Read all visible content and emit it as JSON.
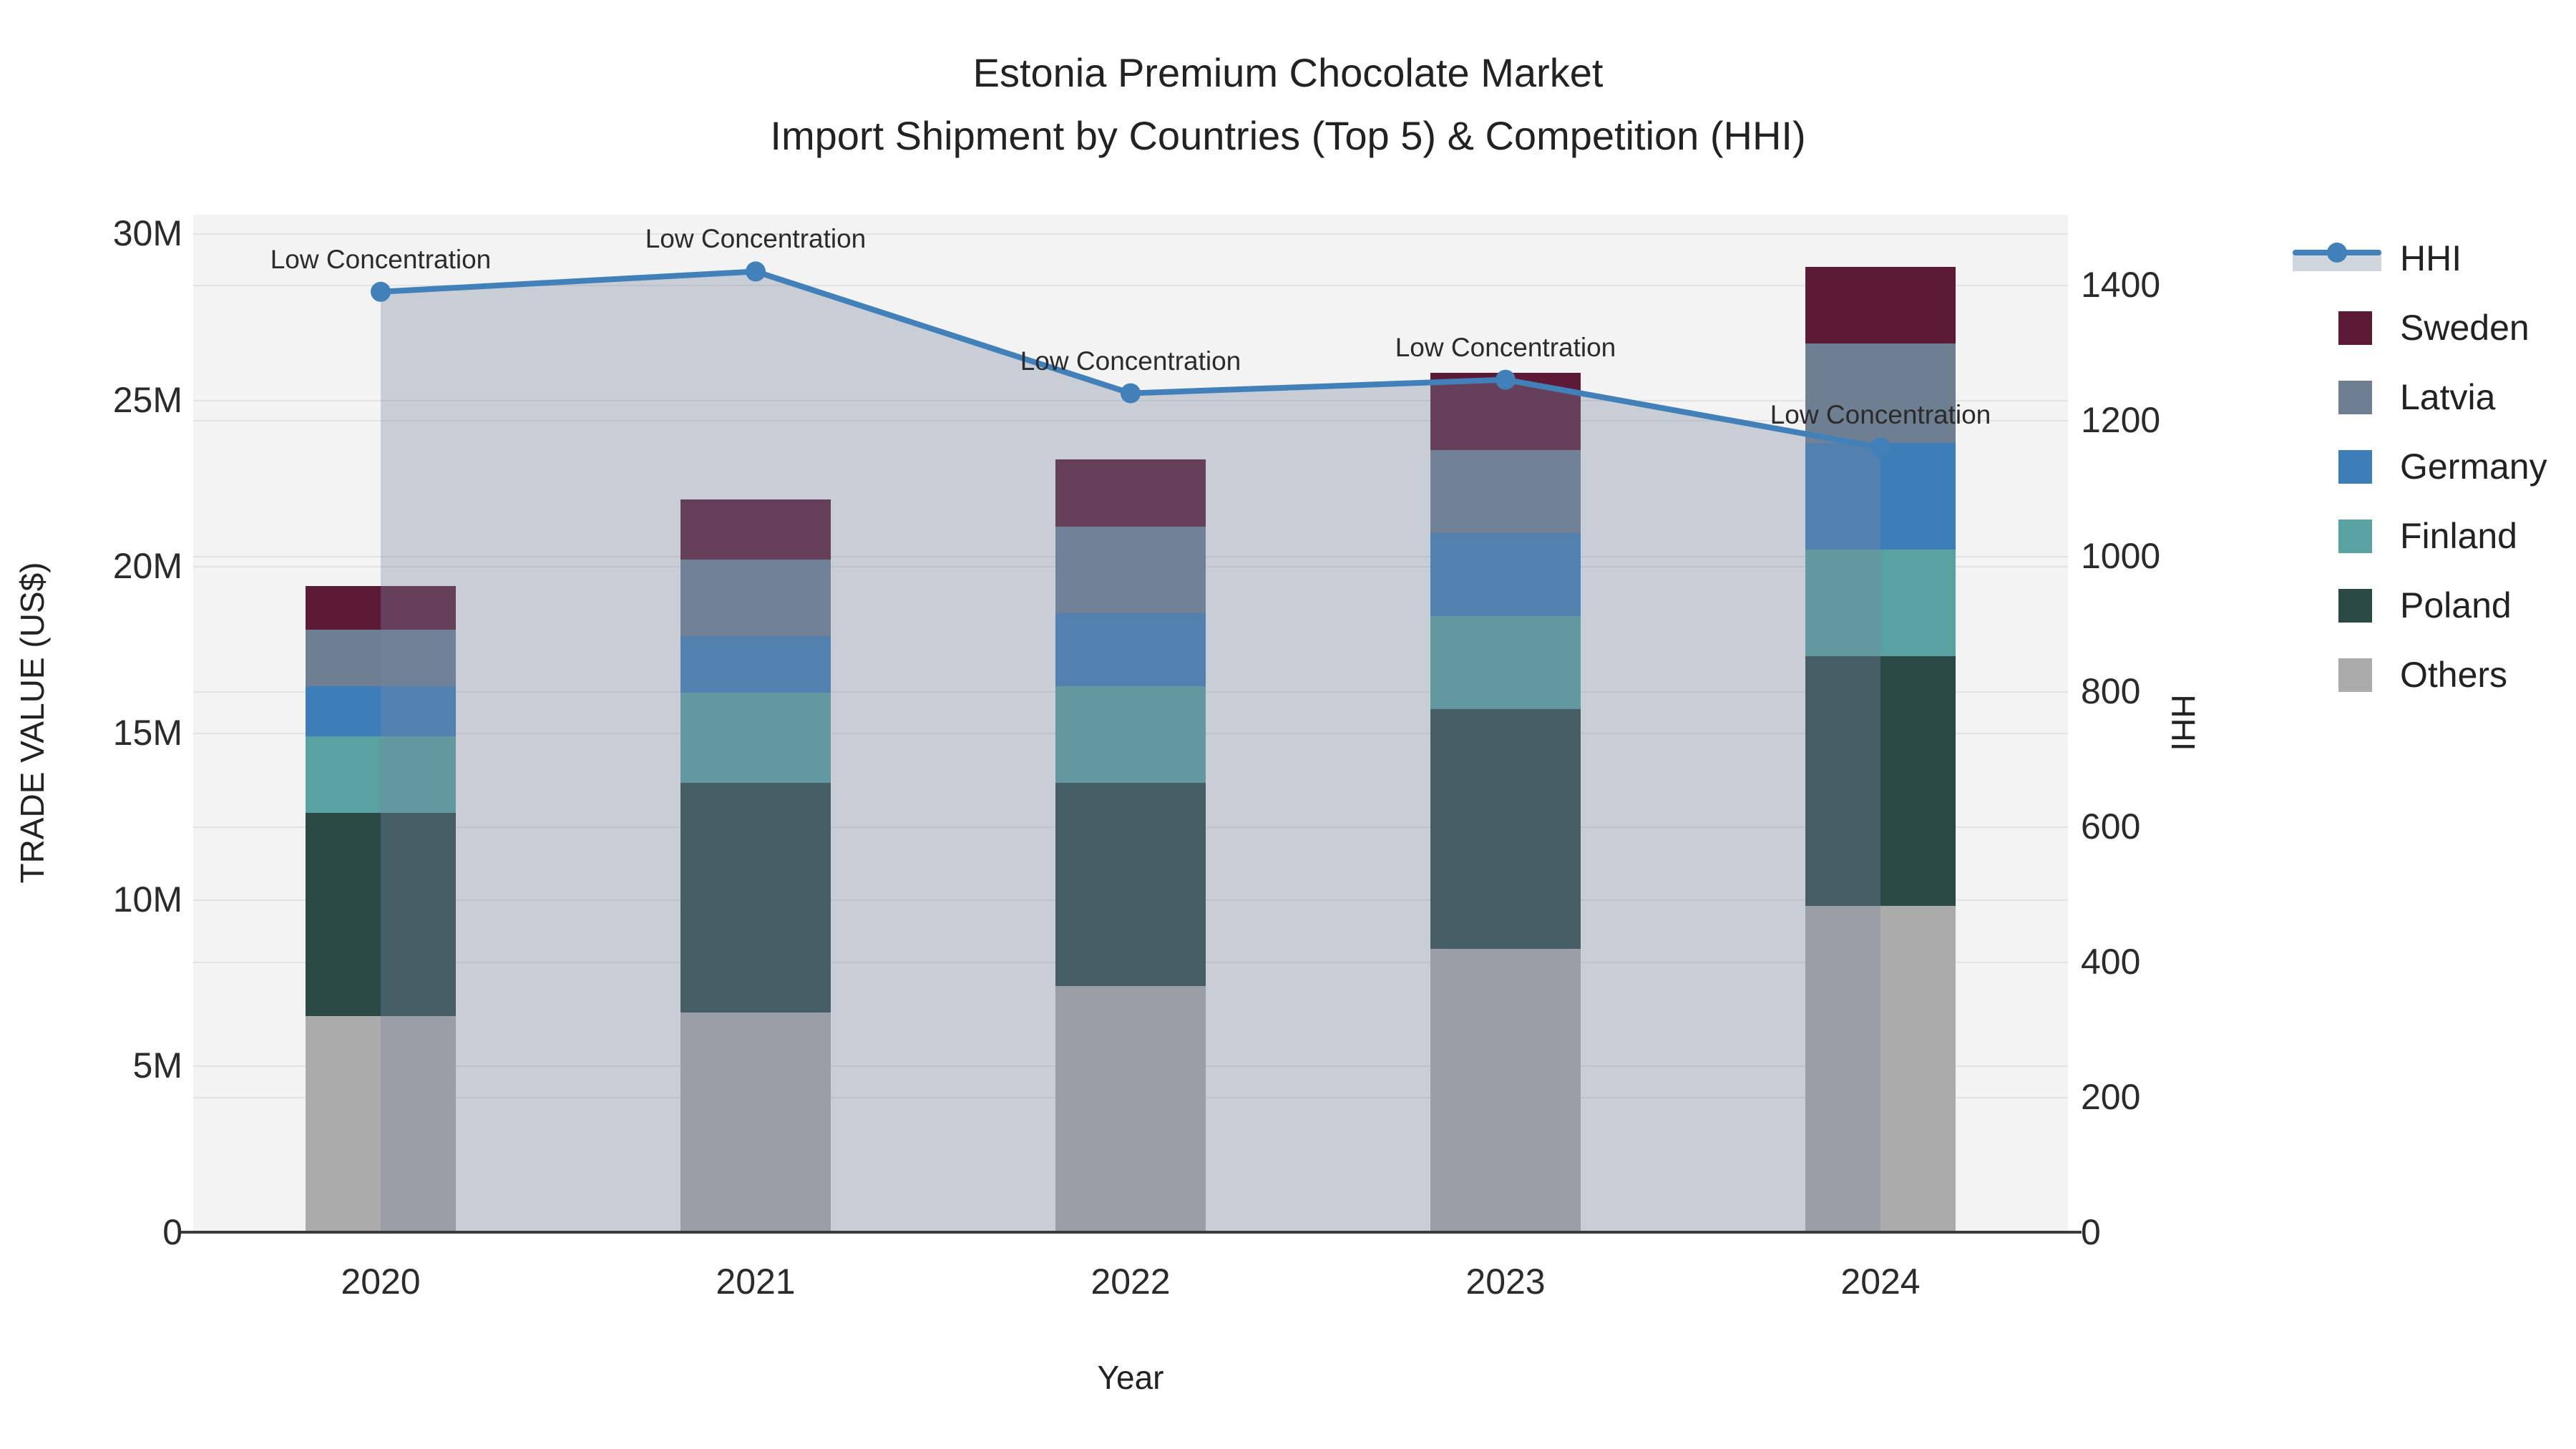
{
  "title": {
    "line1": "Estonia Premium Chocolate Market",
    "line2": "Import Shipment by Countries (Top 5) & Competition (HHI)"
  },
  "axes": {
    "left_label": "TRADE VALUE (US$)",
    "bottom_label": "Year",
    "right_label": "HHI",
    "left_ticks": [
      {
        "value": 0,
        "label": "0"
      },
      {
        "value": 5,
        "label": "5M"
      },
      {
        "value": 10,
        "label": "10M"
      },
      {
        "value": 15,
        "label": "15M"
      },
      {
        "value": 20,
        "label": "20M"
      },
      {
        "value": 25,
        "label": "25M"
      },
      {
        "value": 30,
        "label": "30M"
      }
    ],
    "right_ticks": [
      {
        "value": 0,
        "label": "0"
      },
      {
        "value": 200,
        "label": "200"
      },
      {
        "value": 400,
        "label": "400"
      },
      {
        "value": 600,
        "label": "600"
      },
      {
        "value": 800,
        "label": "800"
      },
      {
        "value": 1000,
        "label": "1000"
      },
      {
        "value": 1200,
        "label": "1200"
      },
      {
        "value": 1400,
        "label": "1400"
      }
    ]
  },
  "chart_data": {
    "type": "bar+line",
    "title": "Estonia Premium Chocolate Market — Import Shipment by Countries (Top 5) & Competition (HHI)",
    "xlabel": "Year",
    "ylabel_left": "TRADE VALUE (US$)",
    "ylabel_right": "HHI",
    "categories": [
      "2020",
      "2021",
      "2022",
      "2023",
      "2024"
    ],
    "left_axis_range_millions": [
      0,
      30.56
    ],
    "right_axis_range": [
      0,
      1504
    ],
    "grid": "on",
    "legend_position": "right",
    "stacked_bar_totals_millions": [
      19.4,
      22.0,
      23.2,
      25.8,
      29.0
    ],
    "series": [
      {
        "name": "Sweden",
        "color": "#5D1A37",
        "values_millions": [
          1.3,
          1.8,
          2.0,
          2.3,
          2.3
        ]
      },
      {
        "name": "Latvia",
        "color": "#6E7F92",
        "values_millions": [
          1.7,
          2.3,
          2.6,
          2.5,
          3.0
        ]
      },
      {
        "name": "Germany",
        "color": "#3E7EB8",
        "values_millions": [
          1.5,
          1.7,
          2.2,
          2.5,
          3.2
        ]
      },
      {
        "name": "Finland",
        "color": "#5AA2A1",
        "values_millions": [
          2.3,
          2.7,
          2.9,
          2.8,
          3.2
        ]
      },
      {
        "name": "Poland",
        "color": "#2B4945",
        "values_millions": [
          6.1,
          6.9,
          6.1,
          7.2,
          7.5
        ]
      },
      {
        "name": "Others",
        "color": "#ABABAB",
        "values_millions": [
          6.5,
          6.6,
          7.4,
          8.5,
          9.8
        ]
      }
    ],
    "hhi_line": {
      "name": "HHI",
      "color": "#4180B8",
      "area_fill": "rgba(120,135,160,0.35)",
      "values": [
        1390,
        1420,
        1240,
        1260,
        1160
      ]
    },
    "annotations": [
      {
        "x": "2020",
        "text": "Low Concentration"
      },
      {
        "x": "2021",
        "text": "Low Concentration"
      },
      {
        "x": "2022",
        "text": "Low Concentration"
      },
      {
        "x": "2023",
        "text": "Low Concentration"
      },
      {
        "x": "2024",
        "text": "Low Concentration"
      }
    ]
  },
  "legend": {
    "items": [
      {
        "label": "HHI",
        "type": "line",
        "color": "#4180B8"
      },
      {
        "label": "Sweden",
        "type": "swatch",
        "color": "#5D1A37"
      },
      {
        "label": "Latvia",
        "type": "swatch",
        "color": "#6E7F92"
      },
      {
        "label": "Germany",
        "type": "swatch",
        "color": "#3E7EB8"
      },
      {
        "label": "Finland",
        "type": "swatch",
        "color": "#5AA2A1"
      },
      {
        "label": "Poland",
        "type": "swatch",
        "color": "#2B4945"
      },
      {
        "label": "Others",
        "type": "swatch",
        "color": "#ABABAB"
      }
    ]
  },
  "colors": {
    "plot_background": "#f3f3f3",
    "gridline": "#e2e2e2",
    "axis_line": "#3c3c3c",
    "text": "#222222"
  }
}
